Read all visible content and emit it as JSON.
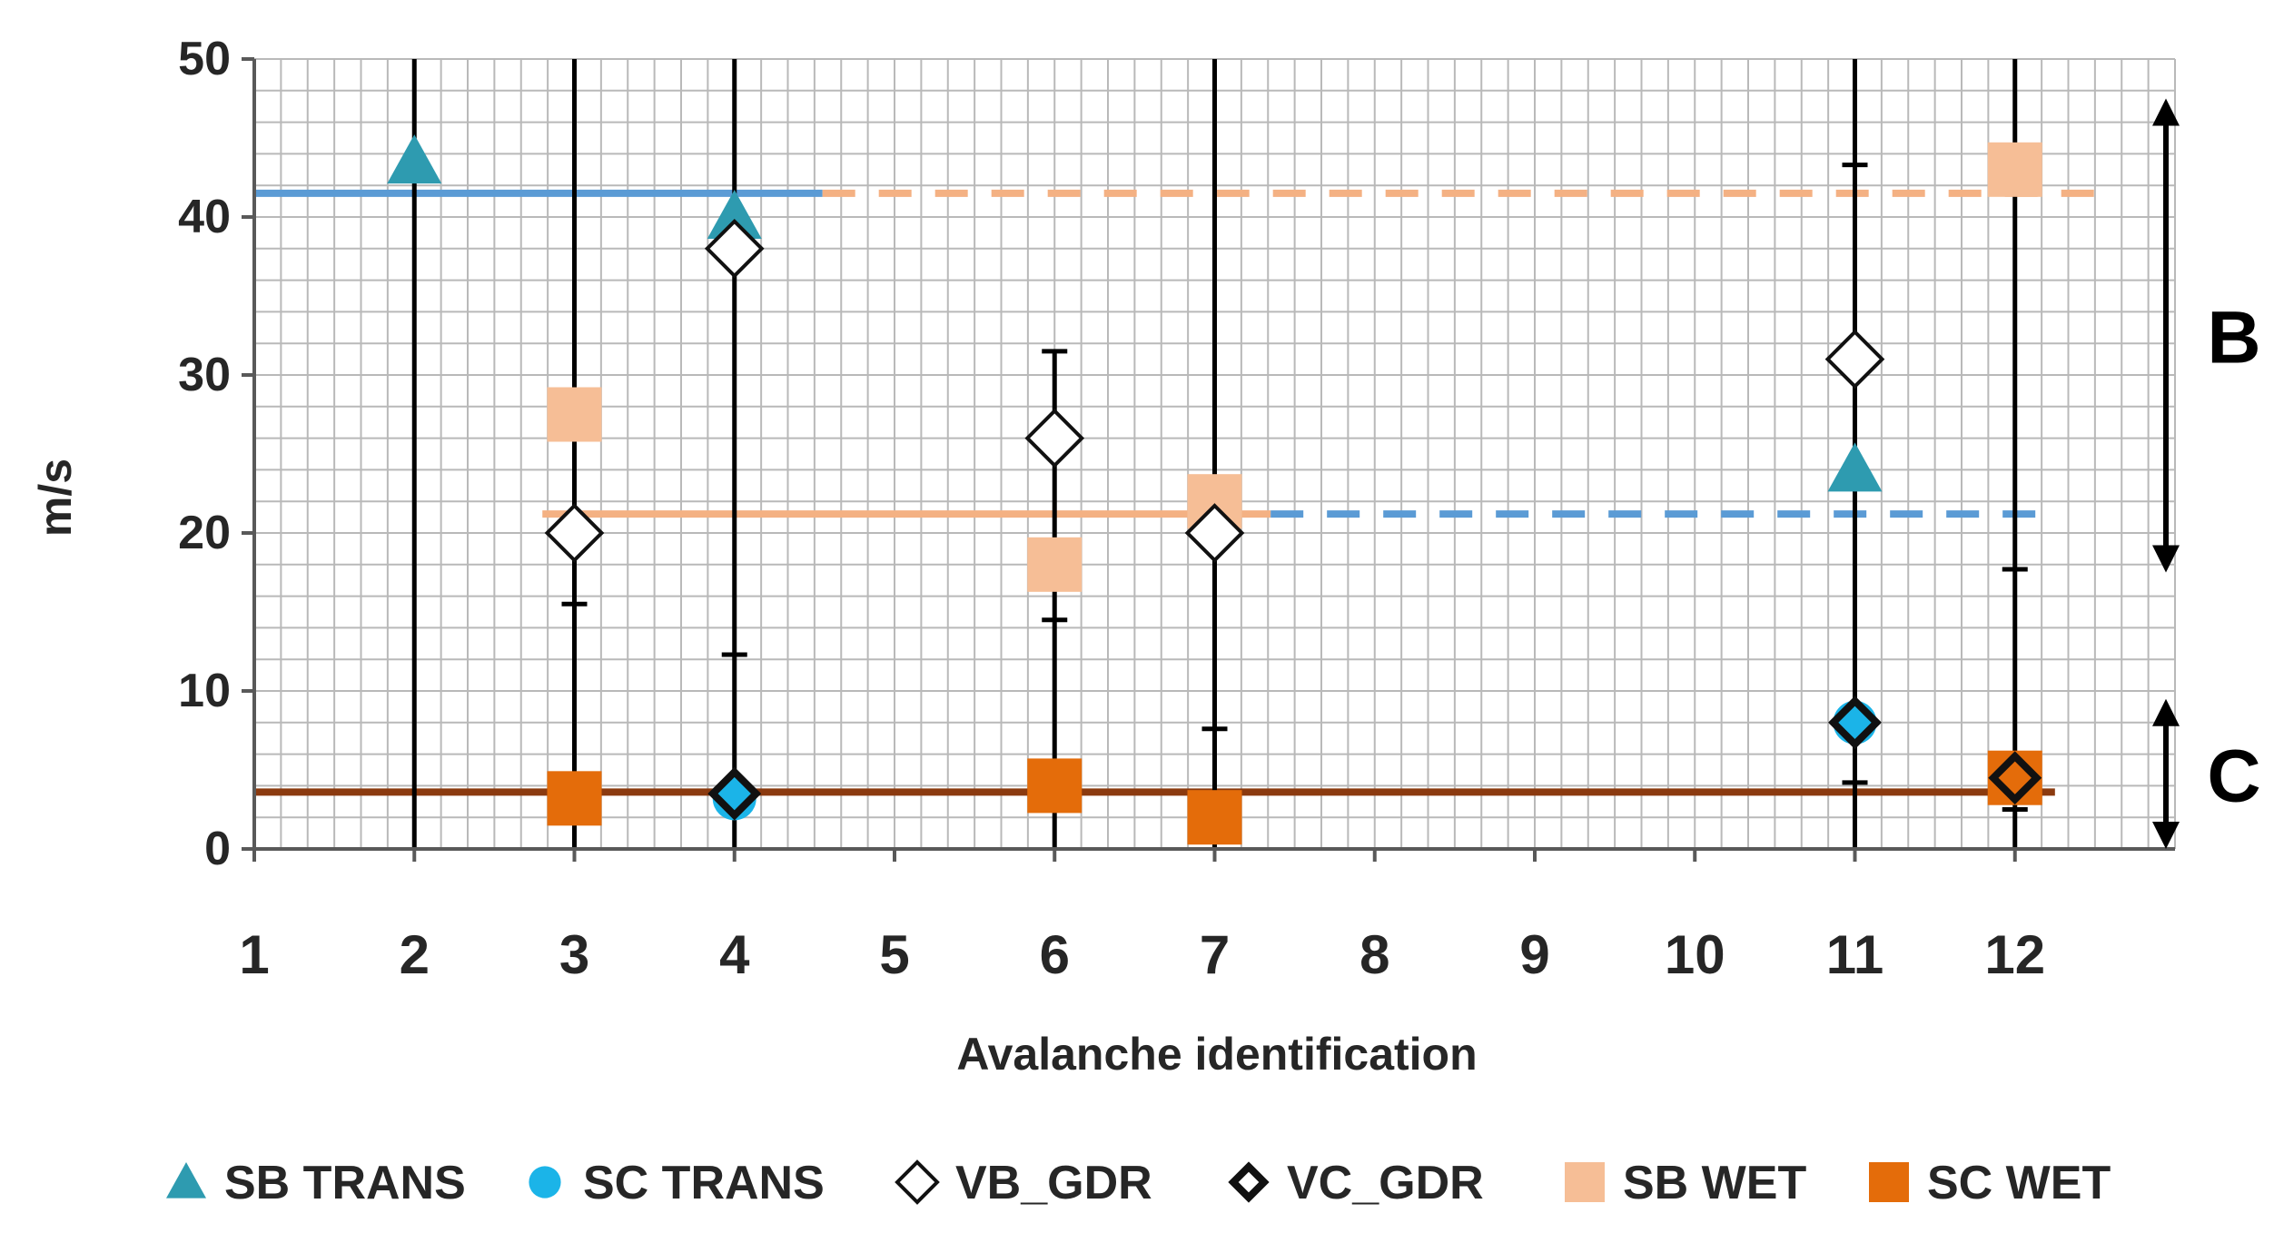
{
  "chart_data": {
    "type": "scatter",
    "title": "",
    "xlabel": "Avalanche identification",
    "ylabel": "m/s",
    "ylim": [
      0,
      50
    ],
    "grid": true,
    "legend_placement": "bottom",
    "categories": [
      "1",
      "2",
      "3",
      "4",
      "5",
      "6",
      "7",
      "8",
      "9",
      "10",
      "11",
      "12"
    ],
    "y_ticks": [
      0,
      10,
      20,
      30,
      40,
      50
    ],
    "series": [
      {
        "name": "SB TRANS",
        "marker": "triangle",
        "color": "#2E9BB0",
        "points": [
          {
            "x": "2",
            "y": 43.5
          },
          {
            "x": "4",
            "y": 40
          },
          {
            "x": "11",
            "y": 24
          }
        ]
      },
      {
        "name": "SC TRANS",
        "marker": "circle",
        "color": "#1BB4E8",
        "points": [
          {
            "x": "4",
            "y": 3.2
          },
          {
            "x": "11",
            "y": 8
          }
        ]
      },
      {
        "name": "VB_GDR",
        "marker": "diamond-open",
        "color": "#111111",
        "points": [
          {
            "x": "3",
            "y": 20
          },
          {
            "x": "4",
            "y": 38
          },
          {
            "x": "6",
            "y": 26
          },
          {
            "x": "7",
            "y": 20
          },
          {
            "x": "11",
            "y": 31
          }
        ]
      },
      {
        "name": "VC_GDR",
        "marker": "diamond-bold",
        "color": "#111111",
        "points": [
          {
            "x": "4",
            "y": 3.5
          },
          {
            "x": "11",
            "y": 8
          },
          {
            "x": "12",
            "y": 4.5
          }
        ]
      },
      {
        "name": "SB WET",
        "marker": "square",
        "color": "#F6BE96",
        "points": [
          {
            "x": "3",
            "y": 27.5
          },
          {
            "x": "6",
            "y": 18
          },
          {
            "x": "7",
            "y": 22
          },
          {
            "x": "12",
            "y": 43
          }
        ]
      },
      {
        "name": "SC WET",
        "marker": "square",
        "color": "#E46C0A",
        "points": [
          {
            "x": "3",
            "y": 3.2
          },
          {
            "x": "6",
            "y": 4
          },
          {
            "x": "7",
            "y": 2
          },
          {
            "x": "12",
            "y": 4.5
          }
        ]
      }
    ],
    "error_bars": [
      {
        "x": "2",
        "low": 0,
        "high": 50
      },
      {
        "x": "3",
        "low": 0,
        "high": 50,
        "ticks": [
          15.5
        ]
      },
      {
        "x": "4",
        "low": 0,
        "high": 50,
        "ticks": [
          12.3
        ]
      },
      {
        "x": "6",
        "low": 0,
        "high": 31.5,
        "ticks": [
          14.5,
          31.5
        ]
      },
      {
        "x": "7",
        "low": 0,
        "high": 50,
        "ticks": [
          7.6
        ]
      },
      {
        "x": "11",
        "low": 0,
        "high": 50,
        "ticks": [
          43.3,
          4.2
        ]
      },
      {
        "x": "12",
        "low": 0,
        "high": 50,
        "ticks": [
          17.7,
          2.5
        ]
      }
    ],
    "reference_lines": [
      {
        "name": "SB TRANS mean",
        "y": 41.5,
        "x_from": 1,
        "x_to": 4.55,
        "style": "solid",
        "color": "#5B9BD5"
      },
      {
        "name": "SB WET extension",
        "y": 41.5,
        "x_from": 4.55,
        "x_to": 12.55,
        "style": "dashed",
        "color": "#F4B183"
      },
      {
        "name": "SB WET mean",
        "y": 21.2,
        "x_from": 2.8,
        "x_to": 7.35,
        "style": "solid",
        "color": "#F4B183"
      },
      {
        "name": "SB TRANS extension",
        "y": 21.2,
        "x_from": 7.35,
        "x_to": 12.25,
        "style": "dashed",
        "color": "#5B9BD5"
      },
      {
        "name": "SC mean",
        "y": 3.6,
        "x_from": 1,
        "x_to": 12.25,
        "style": "solid",
        "color": "#8B3A0F"
      }
    ],
    "zones": [
      {
        "label": "B",
        "y_low": 17.5,
        "y_high": 47.5
      },
      {
        "label": "C",
        "y_low": 0,
        "y_high": 9.5
      }
    ]
  }
}
